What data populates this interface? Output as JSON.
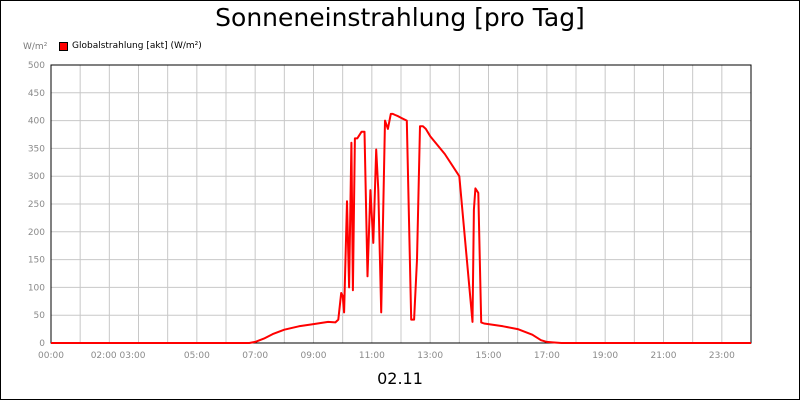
{
  "chart_data": {
    "type": "line",
    "title": "Sonneneinstrahlung [pro Tag]",
    "ylabel": "W/m²",
    "xlabel": "02.11",
    "ylim": [
      0,
      500
    ],
    "xlim_hours": [
      0,
      24
    ],
    "y_ticks": [
      "0",
      "50",
      "100",
      "150",
      "200",
      "250",
      "300",
      "350",
      "400",
      "450",
      "500"
    ],
    "x_tick_labels": [
      {
        "hour": 0,
        "label": "00:00"
      },
      {
        "hour": 2.3,
        "label": "02:00 03:00"
      },
      {
        "hour": 5,
        "label": "05:00"
      },
      {
        "hour": 7,
        "label": "07:00"
      },
      {
        "hour": 9,
        "label": "09:00"
      },
      {
        "hour": 11,
        "label": "11:00"
      },
      {
        "hour": 13,
        "label": "13:00"
      },
      {
        "hour": 15,
        "label": "15:00"
      },
      {
        "hour": 17,
        "label": "17:00"
      },
      {
        "hour": 19,
        "label": "19:00"
      },
      {
        "hour": 21,
        "label": "21:00"
      },
      {
        "hour": 23,
        "label": "23:00"
      }
    ],
    "grid": true,
    "legend_position": "top-left",
    "series": [
      {
        "name": "Globalstrahlung [akt] (W/m²)",
        "color": "#ff0000",
        "x_hours": [
          0,
          6.8,
          7.0,
          7.3,
          7.6,
          8.0,
          8.5,
          9.0,
          9.5,
          9.75,
          9.85,
          9.95,
          10.0,
          10.05,
          10.15,
          10.22,
          10.3,
          10.35,
          10.42,
          10.5,
          10.55,
          10.65,
          10.75,
          10.85,
          10.95,
          11.05,
          11.15,
          11.22,
          11.32,
          11.45,
          11.55,
          11.65,
          11.72,
          11.8,
          11.9,
          12.0,
          12.2,
          12.35,
          12.45,
          12.55,
          12.65,
          12.75,
          12.85,
          13.0,
          13.5,
          14.0,
          14.45,
          14.5,
          14.55,
          14.65,
          14.75,
          14.85,
          15.5,
          16.0,
          16.5,
          16.8,
          17.0,
          17.2,
          17.5,
          18.0,
          24.0
        ],
        "y": [
          0,
          0,
          2,
          8,
          16,
          24,
          30,
          34,
          38,
          37,
          42,
          90,
          85,
          55,
          255,
          100,
          360,
          95,
          368,
          368,
          372,
          380,
          380,
          120,
          275,
          180,
          348,
          275,
          55,
          400,
          385,
          412,
          412,
          410,
          408,
          405,
          400,
          42,
          42,
          150,
          390,
          390,
          385,
          372,
          340,
          300,
          38,
          240,
          278,
          270,
          37,
          35,
          30,
          25,
          15,
          5,
          2,
          1,
          0,
          0,
          0
        ]
      }
    ],
    "date_label": "02.11"
  }
}
